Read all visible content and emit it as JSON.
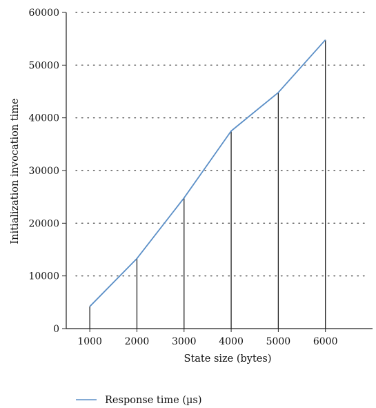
{
  "chart_data": {
    "type": "line",
    "x": [
      1000,
      2000,
      3000,
      4000,
      5000,
      6000
    ],
    "series": [
      {
        "name": "Response time (µs)",
        "values": [
          4200,
          13300,
          24800,
          37500,
          44800,
          54800
        ],
        "color": "#5b8fc7"
      }
    ],
    "xlabel": "State size (bytes)",
    "ylabel": "Initialization invocation time",
    "xticks": [
      "1000",
      "2000",
      "3000",
      "4000",
      "5000",
      "6000"
    ],
    "yticks": [
      "0",
      "10000",
      "20000",
      "30000",
      "40000",
      "50000",
      "60000"
    ],
    "xlim": [
      500,
      7000
    ],
    "ylim": [
      0,
      60000
    ],
    "grid": "horizontal-dotted",
    "drop_lines": true,
    "legend_position": "bottom-left"
  }
}
